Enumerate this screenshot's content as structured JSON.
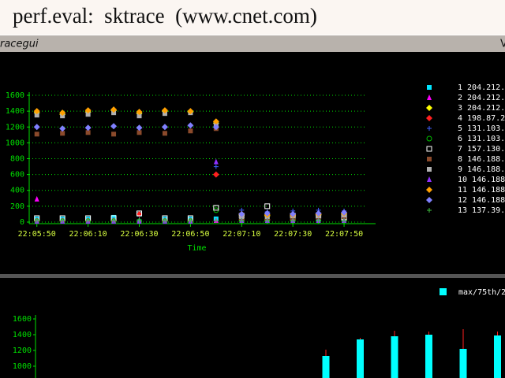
{
  "header": {
    "title": "perf.eval:  sktrace  (www.cnet.com)"
  },
  "window": {
    "title": "racegui",
    "corner": "V"
  },
  "chart_data": [
    {
      "type": "scatter",
      "xlabel": "Time",
      "x": [
        "22:05:50",
        "22:06:00",
        "22:06:10",
        "22:06:20",
        "22:06:30",
        "22:06:40",
        "22:06:50",
        "22:07:00",
        "22:07:10",
        "22:07:20",
        "22:07:30",
        "22:07:40",
        "22:07:50"
      ],
      "xlim": [
        "22:05:47",
        "22:07:58"
      ],
      "xticks": [
        "22:05:50",
        "22:06:10",
        "22:06:30",
        "22:06:50",
        "22:07:10",
        "22:07:30",
        "22:07:50"
      ],
      "ylim": [
        -20,
        1640
      ],
      "yticks": [
        0,
        200,
        400,
        600,
        800,
        1000,
        1200,
        1400,
        1600
      ],
      "grid": true,
      "legend": "right",
      "series": [
        {
          "name": "1 204.212.",
          "color": "#00e5ff",
          "marker": "square",
          "values": [
            40,
            40,
            40,
            60,
            100,
            40,
            40,
            40,
            40,
            40,
            40,
            40,
            40
          ]
        },
        {
          "name": "2 204.212.",
          "color": "#ff00ff",
          "marker": "triangle",
          "values": [
            290,
            20,
            20,
            20,
            20,
            20,
            20,
            20,
            20,
            20,
            20,
            20,
            20
          ]
        },
        {
          "name": "3 204.212.",
          "color": "#ffff00",
          "marker": "diamond",
          "values": [
            1380,
            1360,
            1390,
            1410,
            1370,
            1400,
            1390,
            1250,
            90,
            80,
            80,
            90,
            100
          ]
        },
        {
          "name": "4 198.87.2",
          "color": "#ff2020",
          "marker": "diamond",
          "values": [
            20,
            20,
            20,
            20,
            100,
            20,
            20,
            600,
            30,
            30,
            30,
            100,
            30
          ]
        },
        {
          "name": "5 131.103.",
          "color": "#4060ff",
          "marker": "plus",
          "values": [
            30,
            30,
            30,
            30,
            30,
            30,
            30,
            700,
            150,
            130,
            140,
            150,
            140
          ]
        },
        {
          "name": "6 131.103.",
          "color": "#00c000",
          "marker": "circle",
          "values": [
            10,
            10,
            10,
            10,
            10,
            10,
            10,
            150,
            20,
            20,
            20,
            20,
            20
          ]
        },
        {
          "name": "7 157.130.",
          "color": "#ffffff",
          "marker": "opensquare",
          "values": [
            50,
            50,
            50,
            50,
            110,
            50,
            50,
            180,
            80,
            200,
            80,
            80,
            60
          ]
        },
        {
          "name": "8 146.188.",
          "color": "#8b4a2b",
          "marker": "square",
          "values": [
            1110,
            1120,
            1130,
            1110,
            1130,
            1120,
            1150,
            1180,
            50,
            60,
            60,
            60,
            70
          ]
        },
        {
          "name": "9 146.188.",
          "color": "#b0b0b0",
          "marker": "square",
          "values": [
            1350,
            1340,
            1360,
            1380,
            1340,
            1370,
            1380,
            1230,
            70,
            70,
            80,
            80,
            90
          ]
        },
        {
          "name": "10 146.188.",
          "color": "#9030ff",
          "marker": "triangle",
          "values": [
            10,
            10,
            10,
            10,
            10,
            10,
            10,
            760,
            20,
            20,
            20,
            20,
            20
          ]
        },
        {
          "name": "11 146.188.",
          "color": "#ffa000",
          "marker": "diamond",
          "values": [
            1400,
            1380,
            1410,
            1420,
            1390,
            1410,
            1400,
            1270,
            100,
            90,
            90,
            100,
            110
          ]
        },
        {
          "name": "12 146.188.",
          "color": "#8080ff",
          "marker": "diamond",
          "values": [
            1200,
            1180,
            1190,
            1210,
            1190,
            1200,
            1220,
            1200,
            100,
            110,
            100,
            110,
            120
          ]
        },
        {
          "name": "13 137.39.1",
          "color": "#40c040",
          "marker": "plus",
          "values": [
            20,
            20,
            20,
            20,
            20,
            20,
            20,
            20,
            20,
            20,
            20,
            20,
            20
          ]
        }
      ]
    },
    {
      "type": "bar",
      "categories": [
        null,
        null,
        null,
        null,
        null,
        null
      ],
      "ylim": [
        850,
        1650
      ],
      "yticks": [
        1000,
        1200,
        1400,
        1600
      ],
      "legend": "top-right",
      "series": [
        {
          "name": "max/75th/2",
          "color": "#00ffff",
          "error_color": "#ff2020",
          "values": [
            1130,
            1340,
            1380,
            1400,
            1220,
            1390
          ],
          "max": [
            1210,
            1360,
            1450,
            1440,
            1470,
            1440
          ]
        }
      ]
    }
  ]
}
